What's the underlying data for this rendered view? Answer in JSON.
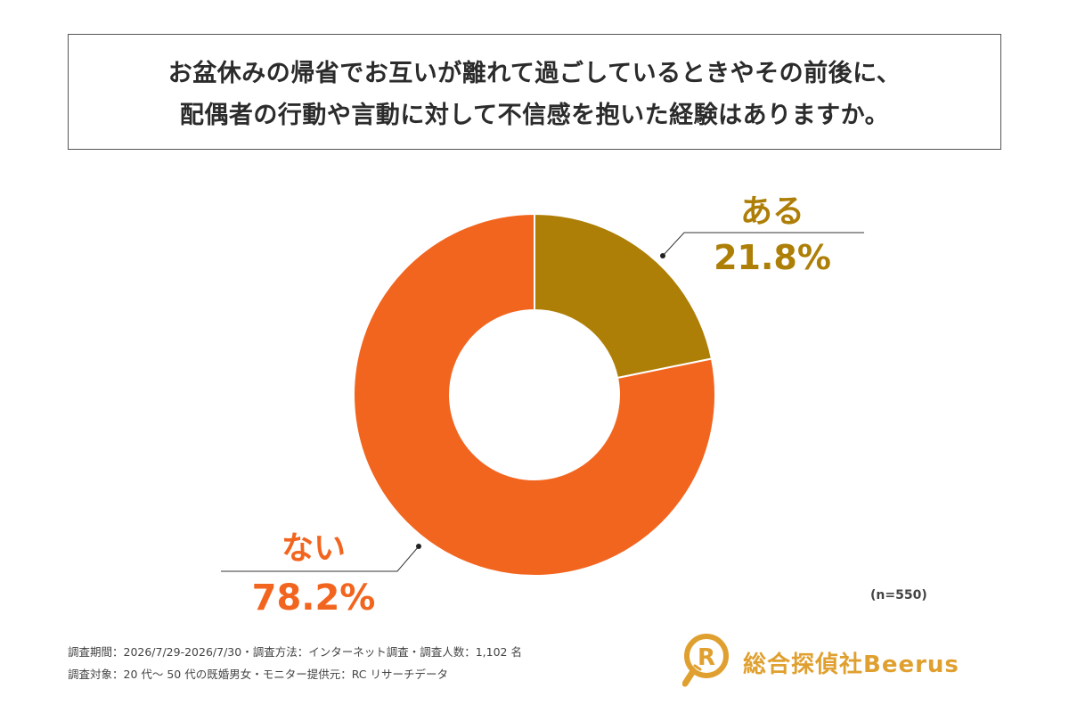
{
  "title": {
    "line1": "お盆休みの帰省でお互いが離れて過ごしているときやその前後に、",
    "line2": "配偶者の行動や言動に対して不信感を抱いた経験はありますか。"
  },
  "chart_data": {
    "type": "pie",
    "hole": true,
    "slices": [
      {
        "label": "ある",
        "value": 21.8,
        "value_label": "21.8%",
        "color": "#ae7f07"
      },
      {
        "label": "ない",
        "value": 78.2,
        "value_label": "78.2%",
        "color": "#f2651f"
      }
    ],
    "n_label": "(n=550)"
  },
  "footnotes": {
    "line1": "調査期間：2026/7/29-2026/7/30・調査方法：インターネット調査・調査人数：1,102 名",
    "line2": "調査対象：20 代～ 50 代の既婚男女・モニター提供元：RC リサーチデータ"
  },
  "logo": {
    "text": "総合探偵社Beerus",
    "icon": "magnifier-r-logo-icon",
    "color": "#e0a030"
  }
}
